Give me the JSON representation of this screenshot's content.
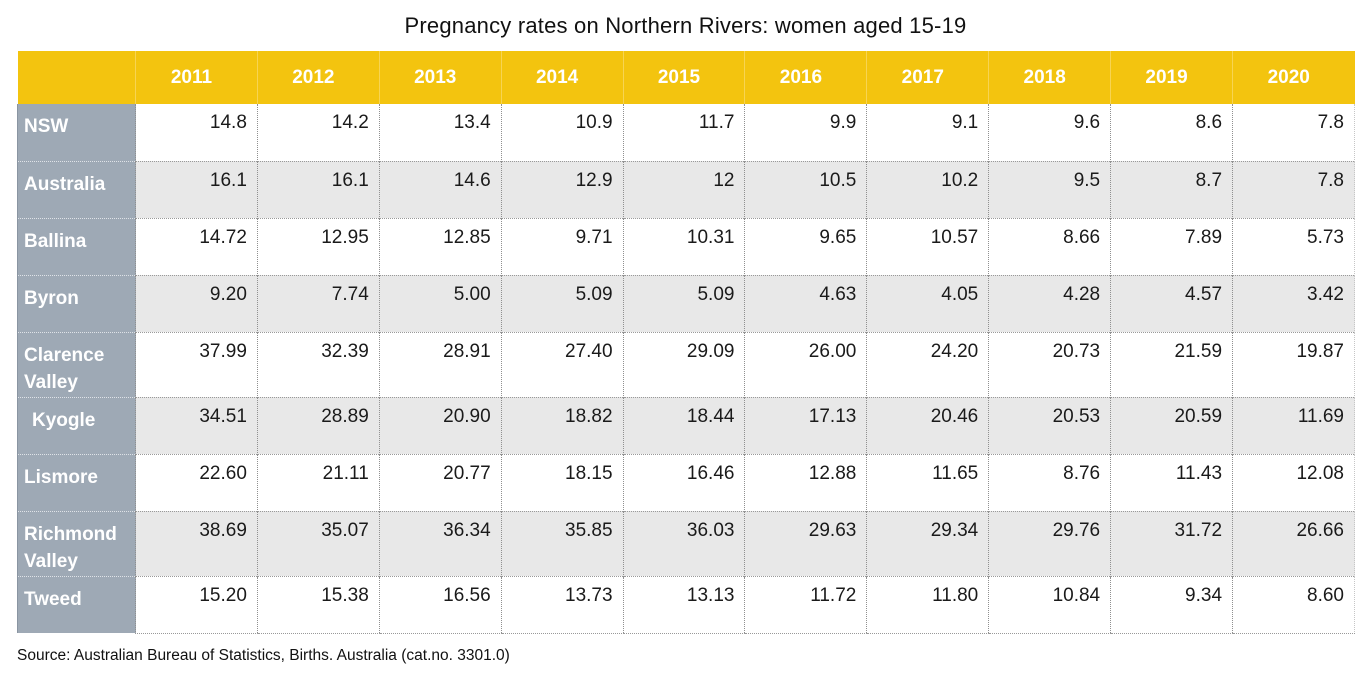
{
  "title": "Pregnancy rates on Northern Rivers: women aged 15-19",
  "source": "Source: Australian Bureau of Statistics, Births. Australia (cat.no. 3301.0)",
  "colors": {
    "header_bg": "#F3C40F",
    "row_label_bg": "#9EA9B5",
    "zebra_stripe_bg": "#E8E8E8",
    "header_text": "#ffffff",
    "value_text": "#1a1a1a"
  },
  "table": {
    "corner_label": "",
    "years": [
      "2011",
      "2012",
      "2013",
      "2014",
      "2015",
      "2016",
      "2017",
      "2018",
      "2019",
      "2020"
    ],
    "rows": [
      {
        "label": "NSW",
        "values": [
          "14.8",
          "14.2",
          "13.4",
          "10.9",
          "11.7",
          "9.9",
          "9.1",
          "9.6",
          "8.6",
          "7.8"
        ]
      },
      {
        "label": "Australia",
        "values": [
          "16.1",
          "16.1",
          "14.6",
          "12.9",
          "12",
          "10.5",
          "10.2",
          "9.5",
          "8.7",
          "7.8"
        ]
      },
      {
        "label": "Ballina",
        "values": [
          "14.72",
          "12.95",
          "12.85",
          "9.71",
          "10.31",
          "9.65",
          "10.57",
          "8.66",
          "7.89",
          "5.73"
        ]
      },
      {
        "label": "Byron",
        "values": [
          "9.20",
          "7.74",
          "5.00",
          "5.09",
          "5.09",
          "4.63",
          "4.05",
          "4.28",
          "4.57",
          "3.42"
        ]
      },
      {
        "label": "Clarence Valley",
        "values": [
          "37.99",
          "32.39",
          "28.91",
          "27.40",
          "29.09",
          "26.00",
          "24.20",
          "20.73",
          "21.59",
          "19.87"
        ]
      },
      {
        "label": "Kyogle",
        "values": [
          "34.51",
          "28.89",
          "20.90",
          "18.82",
          "18.44",
          "17.13",
          "20.46",
          "20.53",
          "20.59",
          "11.69"
        ]
      },
      {
        "label": "Lismore",
        "values": [
          "22.60",
          "21.11",
          "20.77",
          "18.15",
          "16.46",
          "12.88",
          "11.65",
          "8.76",
          "11.43",
          "12.08"
        ]
      },
      {
        "label": "Richmond Valley",
        "values": [
          "38.69",
          "35.07",
          "36.34",
          "35.85",
          "36.03",
          "29.63",
          "29.34",
          "29.76",
          "31.72",
          "26.66"
        ]
      },
      {
        "label": "Tweed",
        "values": [
          "15.20",
          "15.38",
          "16.56",
          "13.73",
          "13.13",
          "11.72",
          "11.80",
          "10.84",
          "9.34",
          "8.60"
        ]
      }
    ]
  },
  "chart_data": {
    "type": "table",
    "title": "Pregnancy rates on Northern Rivers: women aged 15-19",
    "categories": [
      2011,
      2012,
      2013,
      2014,
      2015,
      2016,
      2017,
      2018,
      2019,
      2020
    ],
    "series": [
      {
        "name": "NSW",
        "values": [
          14.8,
          14.2,
          13.4,
          10.9,
          11.7,
          9.9,
          9.1,
          9.6,
          8.6,
          7.8
        ]
      },
      {
        "name": "Australia",
        "values": [
          16.1,
          16.1,
          14.6,
          12.9,
          12,
          10.5,
          10.2,
          9.5,
          8.7,
          7.8
        ]
      },
      {
        "name": "Ballina",
        "values": [
          14.72,
          12.95,
          12.85,
          9.71,
          10.31,
          9.65,
          10.57,
          8.66,
          7.89,
          5.73
        ]
      },
      {
        "name": "Byron",
        "values": [
          9.2,
          7.74,
          5.0,
          5.09,
          5.09,
          4.63,
          4.05,
          4.28,
          4.57,
          3.42
        ]
      },
      {
        "name": "Clarence Valley",
        "values": [
          37.99,
          32.39,
          28.91,
          27.4,
          29.09,
          26.0,
          24.2,
          20.73,
          21.59,
          19.87
        ]
      },
      {
        "name": "Kyogle",
        "values": [
          34.51,
          28.89,
          20.9,
          18.82,
          18.44,
          17.13,
          20.46,
          20.53,
          20.59,
          11.69
        ]
      },
      {
        "name": "Lismore",
        "values": [
          22.6,
          21.11,
          20.77,
          18.15,
          16.46,
          12.88,
          11.65,
          8.76,
          11.43,
          12.08
        ]
      },
      {
        "name": "Richmond Valley",
        "values": [
          38.69,
          35.07,
          36.34,
          35.85,
          36.03,
          29.63,
          29.34,
          29.76,
          31.72,
          26.66
        ]
      },
      {
        "name": "Tweed",
        "values": [
          15.2,
          15.38,
          16.56,
          13.73,
          13.13,
          11.72,
          11.8,
          10.84,
          9.34,
          8.6
        ]
      }
    ],
    "source_note": "Source: Australian Bureau of Statistics, Births. Australia (cat.no. 3301.0)"
  }
}
